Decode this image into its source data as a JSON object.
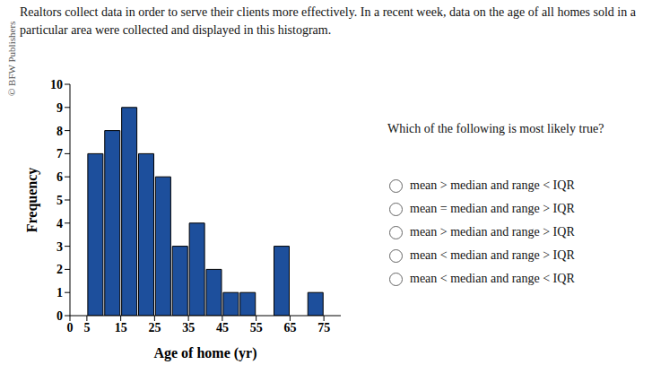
{
  "copyright": "© BFW Publishers",
  "intro": "Realtors collect data in order to serve their clients more effectively. In a recent week, data on the age of all homes sold in a particular area were collected and displayed in this histogram.",
  "question": "Which of the following is most likely true?",
  "options": [
    "mean > median and range < IQR",
    "mean = median and range > IQR",
    "mean > median and range > IQR",
    "mean < median and range > IQR",
    "mean < median and range < IQR"
  ],
  "chart_data": {
    "type": "histogram",
    "bins": [
      5,
      10,
      15,
      20,
      25,
      30,
      35,
      40,
      45,
      50,
      55,
      60,
      65,
      70,
      75
    ],
    "values": [
      7,
      8,
      9,
      7,
      6,
      3,
      4,
      2,
      1,
      1,
      0,
      3,
      0,
      1
    ],
    "color": "#1d4f9c",
    "xlabel": "Age of home (yr)",
    "ylabel": "Frequency",
    "xlim": [
      0,
      80
    ],
    "xticks": [
      0,
      5,
      15,
      25,
      35,
      45,
      55,
      65,
      75
    ],
    "ylim": [
      0,
      10
    ],
    "yticks": [
      0,
      1,
      2,
      3,
      4,
      5,
      6,
      7,
      8,
      9,
      10
    ]
  }
}
